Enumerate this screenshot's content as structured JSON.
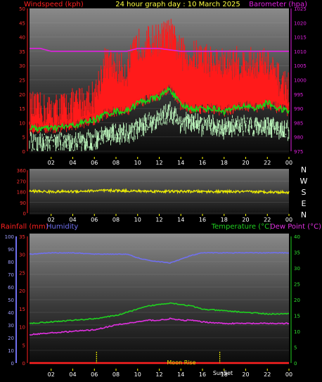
{
  "title": "24 hour graph day : 10 March 2025",
  "colors": {
    "background": "#000000",
    "windspeed": "#ff1a1a",
    "wind_average": "#18d818",
    "wind_gust_low": "#b8f0b8",
    "barometer": "#e020e0",
    "wind_direction": "#f0f000",
    "humidity": "#7070f0",
    "rainfall": "#ff2020",
    "temperature": "#20d020",
    "dew_point": "#e030e0",
    "moon_marker": "#e0e000",
    "x_tick": "#ffff00"
  },
  "panel1": {
    "left_label": "Windspeed (kph)",
    "right_label": "Barometer (hpa)"
  },
  "panel2": {
    "compass": [
      "N",
      "W",
      "S",
      "E",
      "N"
    ]
  },
  "panel3": {
    "rain_label": "Rainfall (mm)",
    "humidity_label": "Humidity",
    "temp_label": "Temperature (°C)",
    "dew_label": "Dew Point (°C)",
    "moon_rise_label": "Moon Rise",
    "sunset_label": "SunSet"
  },
  "chart_data": [
    {
      "type": "line",
      "xlabel": "",
      "x_ticks": [
        "02",
        "04",
        "06",
        "08",
        "10",
        "12",
        "14",
        "16",
        "18",
        "20",
        "22",
        "00"
      ],
      "y_left": {
        "label": "Windspeed (kph)",
        "ticks": [
          0,
          5,
          10,
          15,
          20,
          25,
          30,
          35,
          40,
          45,
          50
        ],
        "range": [
          0,
          50
        ]
      },
      "y_right": {
        "label": "Barometer (hpa)",
        "ticks": [
          975,
          980,
          985,
          990,
          995,
          1000,
          1005,
          1010,
          1015,
          1020,
          1025
        ],
        "range": [
          975,
          1025
        ]
      },
      "series": [
        {
          "name": "Windspeed (kph)",
          "hours": [
            0,
            2,
            4,
            6,
            7,
            8,
            9,
            10,
            11,
            12,
            13,
            14,
            15,
            16,
            17,
            18,
            19,
            20,
            21,
            22,
            23,
            24
          ],
          "values": [
            14,
            13,
            15,
            18,
            30,
            28,
            27,
            36,
            37,
            38,
            40,
            33,
            32,
            32,
            30,
            29,
            30,
            29,
            30,
            29,
            24,
            21
          ]
        },
        {
          "hours": [
            0,
            2,
            4,
            6,
            7,
            8,
            9,
            10,
            11,
            12,
            13,
            14,
            15,
            16,
            17,
            18,
            19,
            20,
            21,
            22,
            23,
            24
          ],
          "values": [
            8,
            8,
            9,
            11,
            13,
            14,
            14,
            17,
            18,
            19,
            22,
            16,
            15,
            15,
            15,
            14,
            15,
            16,
            15,
            17,
            15,
            14
          ]
        },
        {
          "hours": [
            0,
            2,
            4,
            6,
            7,
            8,
            9,
            10,
            11,
            12,
            13,
            14,
            15,
            16,
            17,
            18,
            19,
            20,
            21,
            22,
            23,
            24
          ],
          "values": [
            3,
            3,
            3,
            4,
            6,
            6,
            6,
            8,
            10,
            11,
            14,
            10,
            10,
            9,
            9,
            8,
            9,
            9,
            9,
            9,
            8,
            7
          ]
        },
        {
          "name": "Barometer (hpa)",
          "hours": [
            0,
            1,
            2,
            4,
            6,
            8,
            9,
            10,
            12,
            14,
            16,
            18,
            20,
            22,
            24
          ],
          "values": [
            1011,
            1011,
            1010,
            1010,
            1010,
            1010,
            1010,
            1011,
            1011,
            1010,
            1010,
            1010,
            1010,
            1010,
            1010
          ]
        }
      ]
    },
    {
      "type": "line",
      "x_ticks": [
        "02",
        "04",
        "06",
        "08",
        "10",
        "12",
        "14",
        "16",
        "18",
        "20",
        "22",
        "00"
      ],
      "y": {
        "ticks": [
          0,
          90,
          180,
          270,
          360
        ],
        "range": [
          0,
          360
        ]
      },
      "series": [
        {
          "name": "Wind direction",
          "hours": [
            0,
            2,
            4,
            6,
            8,
            10,
            12,
            14,
            16,
            18,
            20,
            22,
            24
          ],
          "values": [
            185,
            180,
            182,
            188,
            190,
            185,
            183,
            182,
            182,
            180,
            180,
            178,
            175
          ]
        }
      ]
    },
    {
      "type": "line",
      "x_ticks": [
        "02",
        "04",
        "06",
        "08",
        "10",
        "12",
        "14",
        "16",
        "18",
        "20",
        "22",
        "00"
      ],
      "y_left_humidity": {
        "label": "Humidity",
        "ticks": [
          0,
          10,
          20,
          30,
          40,
          50,
          60,
          70,
          80,
          90,
          100
        ],
        "range": [
          0,
          100
        ]
      },
      "y_left_rain": {
        "label": "Rainfall (mm)",
        "ticks": [
          0,
          5,
          10,
          15,
          20,
          25,
          30,
          35
        ],
        "range": [
          0,
          35
        ]
      },
      "y_right": {
        "label": "Temperature (°C)",
        "ticks": [
          0,
          5,
          10,
          15,
          20,
          25,
          30,
          35,
          40
        ],
        "range": [
          0,
          40
        ]
      },
      "series": [
        {
          "name": "Humidity",
          "hours": [
            0,
            2,
            4,
            6,
            8,
            9,
            10,
            11,
            12,
            13,
            14,
            15,
            16,
            18,
            20,
            22,
            24
          ],
          "values": [
            86,
            87,
            87,
            86,
            86,
            86,
            83,
            81,
            80,
            79,
            82,
            85,
            87,
            87,
            87,
            87,
            87
          ]
        },
        {
          "name": "Rainfall (mm)",
          "hours": [
            0,
            24
          ],
          "values": [
            0,
            0
          ]
        },
        {
          "name": "Temperature (°C)",
          "hours": [
            0,
            2,
            4,
            6,
            8,
            9,
            10,
            11,
            12,
            13,
            14,
            15,
            16,
            18,
            20,
            22,
            24
          ],
          "values": [
            12.5,
            13,
            13.5,
            14,
            15,
            16,
            17,
            18,
            18.5,
            19,
            18.5,
            18,
            17,
            16.5,
            16,
            15.5,
            15.5
          ]
        },
        {
          "name": "Dew Point (°C)",
          "hours": [
            0,
            2,
            4,
            6,
            8,
            10,
            11,
            12,
            13,
            14,
            15,
            16,
            18,
            20,
            22,
            24
          ],
          "values": [
            9,
            9.5,
            10,
            10.5,
            12,
            13,
            13.5,
            13.5,
            14,
            13.5,
            13.5,
            13,
            12.5,
            12.5,
            12.5,
            12.5
          ]
        }
      ],
      "markers": [
        {
          "label": "Moon Rise",
          "hour": 6.2
        },
        {
          "label": "SunSet",
          "hour": 17.6
        }
      ]
    }
  ]
}
